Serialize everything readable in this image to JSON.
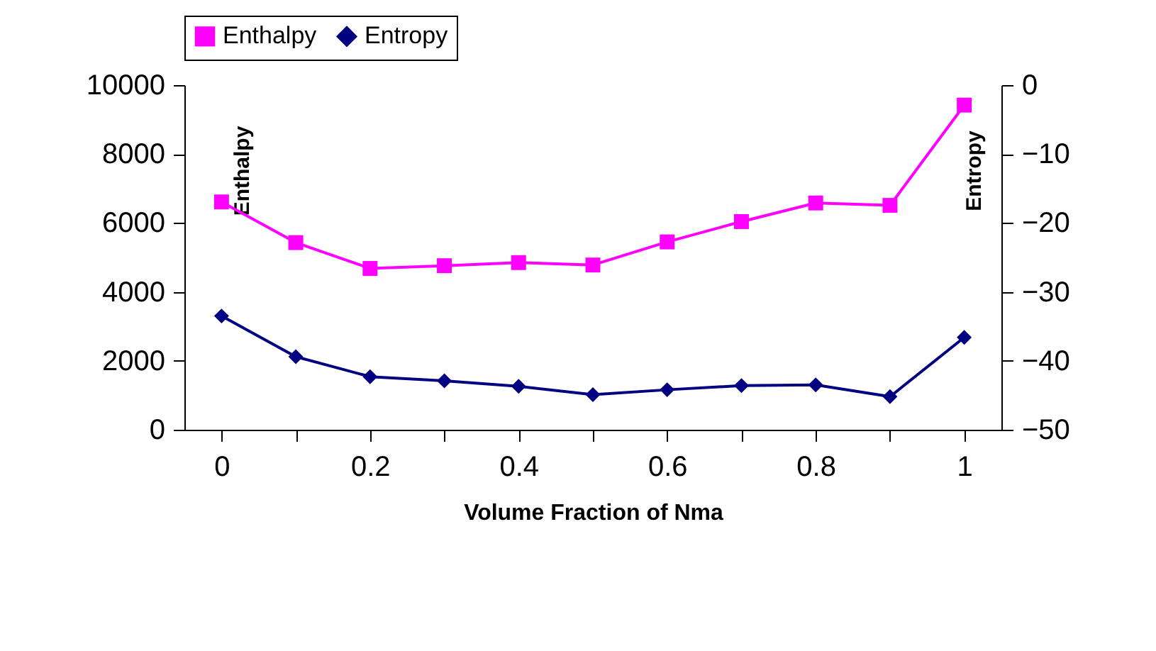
{
  "chart_data": {
    "type": "line",
    "xlabel": "Volume Fraction of Nma",
    "ylabel": "Enthalpy",
    "y2label": "Entropy",
    "categories": [
      "0",
      null,
      "0.2",
      null,
      "0.4",
      null,
      "0.6",
      null,
      "0.8",
      null,
      "1"
    ],
    "series": [
      {
        "name": "Enthalpy",
        "color": "#ff00ff",
        "marker": "square",
        "values": [
          6610,
          5430,
          4680,
          4760,
          4850,
          4780,
          5450,
          6040,
          6580,
          6510,
          9420
        ]
      },
      {
        "name": "Entropy",
        "color": "#000080",
        "marker": "diamond",
        "axis": "y2",
        "values": [
          -33.5,
          -39.4,
          -42.3,
          -42.9,
          -43.7,
          -44.9,
          -44.2,
          -43.6,
          -43.5,
          -45.2,
          -36.6
        ]
      }
    ],
    "ylim": [
      0,
      10000
    ],
    "yticks": [
      0,
      2000,
      4000,
      6000,
      8000,
      10000
    ],
    "y2lim": [
      -50,
      0
    ],
    "y2ticks": [
      -50,
      -40,
      -30,
      -20,
      -10,
      0
    ],
    "legend": "top",
    "grid": false,
    "line_style": "solid"
  }
}
